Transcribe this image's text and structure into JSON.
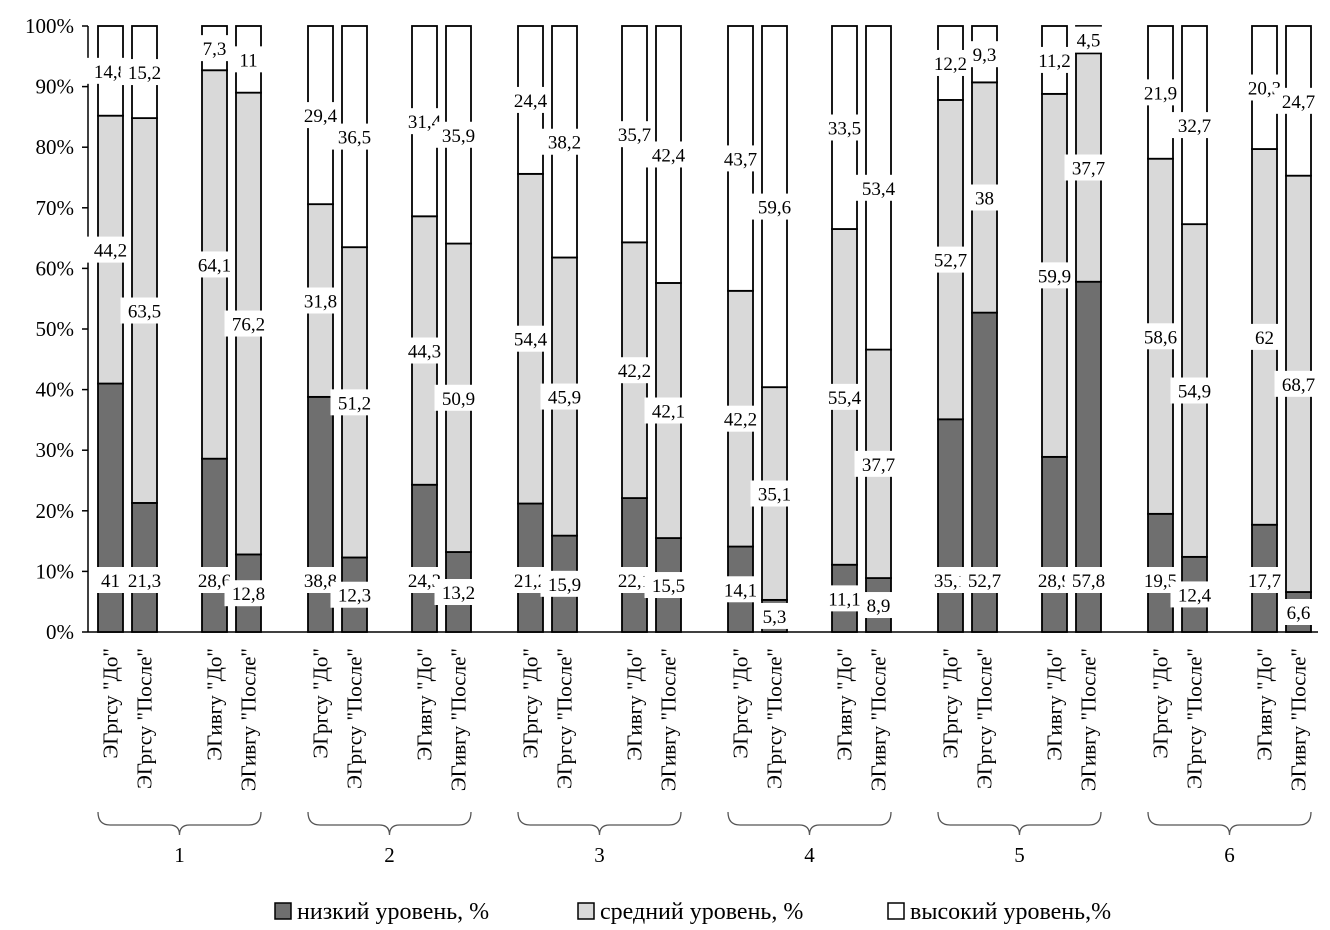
{
  "chart_data": {
    "type": "bar",
    "stacked": true,
    "ylim": [
      0,
      100
    ],
    "yticks": [
      "0%",
      "10%",
      "20%",
      "30%",
      "40%",
      "50%",
      "60%",
      "70%",
      "80%",
      "90%",
      "100%"
    ],
    "grid": false,
    "legend_position": "bottom",
    "colors": {
      "low": "#6f6f6f",
      "mid": "#d9d9d9",
      "high": "#ffffff",
      "stroke": "#000000"
    },
    "groups": [
      "1",
      "2",
      "3",
      "4",
      "5",
      "6"
    ],
    "categories": [
      "ЭГргсу \"До\"",
      "ЭГргсу \"После\"",
      "ЭГивгу \"До\"",
      "ЭГивгу \"После\"",
      "ЭГргсу \"До\"",
      "ЭГргсу \"После\"",
      "ЭГивгу \"До\"",
      "ЭГивгу \"После\"",
      "ЭГргсу \"До\"",
      "ЭГргсу \"После\"",
      "ЭГивгу \"До\"",
      "ЭГивгу \"После\"",
      "ЭГргсу \"До\"",
      "ЭГргсу \"После\"",
      "ЭГивгу \"До\"",
      "ЭГивгу \"После\"",
      "ЭГргсу \"До\"",
      "ЭГргсу \"После\"",
      "ЭГивгу \"До\"",
      "ЭГивгу \"После\"",
      "ЭГргсу \"До\"",
      "ЭГргсу \"После\"",
      "ЭГивгу \"До\"",
      "ЭГивгу \"После\""
    ],
    "series": [
      {
        "name": "низкий уровень, %",
        "values": [
          41,
          21.3,
          28.6,
          12.8,
          38.8,
          12.3,
          24.3,
          13.2,
          21.2,
          15.9,
          22.1,
          15.5,
          14.1,
          5.3,
          11.1,
          8.9,
          35.1,
          52.7,
          28.9,
          57.8,
          19.5,
          12.4,
          17.7,
          6.6
        ],
        "labels": [
          "41",
          "21,3",
          "28,6",
          "12,8",
          "38,8",
          "12,3",
          "24,3",
          "13,2",
          "21,2",
          "15,9",
          "22,1",
          "15,5",
          "14,1",
          "5,3",
          "11,1",
          "8,9",
          "35,1",
          "52,7",
          "28,9",
          "57,8",
          "19,5",
          "12,4",
          "17,7",
          "6,6"
        ]
      },
      {
        "name": "средний уровень, %",
        "values": [
          44.2,
          63.5,
          64.1,
          76.2,
          31.8,
          51.2,
          44.3,
          50.9,
          54.4,
          45.9,
          42.2,
          42.1,
          42.2,
          35.1,
          55.4,
          37.7,
          52.7,
          38,
          59.9,
          37.7,
          58.6,
          54.9,
          62,
          68.7
        ],
        "labels": [
          "44,2",
          "63,5",
          "64,1",
          "76,2",
          "31,8",
          "51,2",
          "44,3",
          "50,9",
          "54,4",
          "45,9",
          "42,2",
          "42,1",
          "42,2",
          "35,1",
          "55,4",
          "37,7",
          "52,7",
          "38",
          "59,9",
          "37,7",
          "58,6",
          "54,9",
          "62",
          "68,7"
        ]
      },
      {
        "name": "высокий уровень,%",
        "values": [
          14.8,
          15.2,
          7.3,
          11,
          29.4,
          36.5,
          31.4,
          35.9,
          24.4,
          38.2,
          35.7,
          42.4,
          43.7,
          59.6,
          33.5,
          53.4,
          12.2,
          9.3,
          11.2,
          4.5,
          21.9,
          32.7,
          20.3,
          24.7
        ],
        "labels": [
          "14,8",
          "15,2",
          "7,3",
          "11",
          "29,4",
          "36,5",
          "31,4",
          "35,9",
          "24,4",
          "38,2",
          "35,7",
          "42,4",
          "43,7",
          "59,6",
          "33,5",
          "53,4",
          "12,2",
          "9,3",
          "11,2",
          "4,5",
          "21,9",
          "32,7",
          "20,3",
          "24,7"
        ]
      }
    ]
  }
}
